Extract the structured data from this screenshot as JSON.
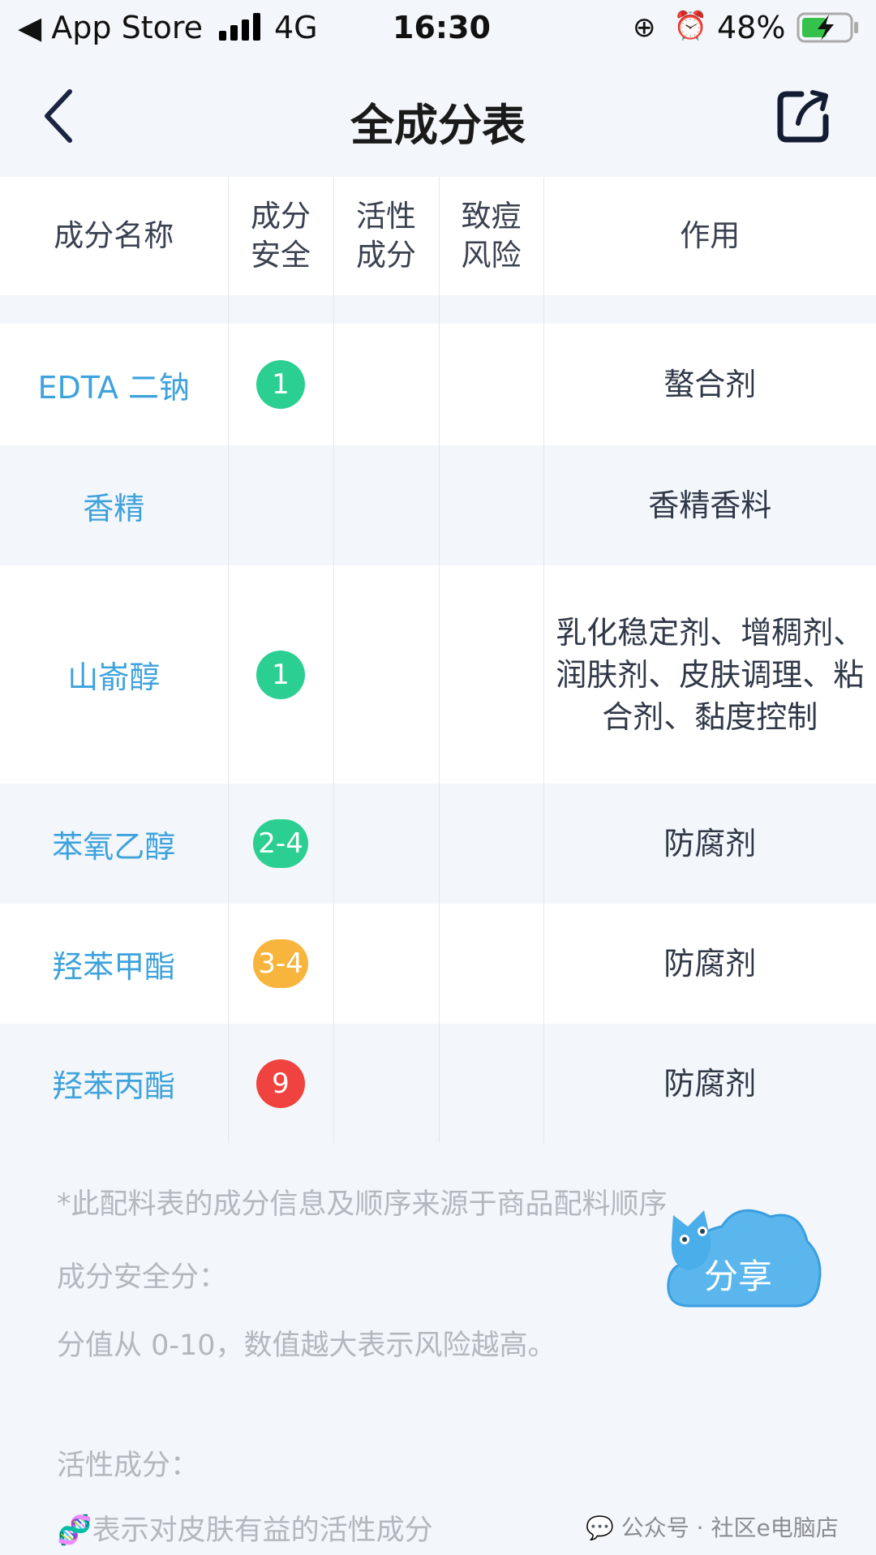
{
  "status_bar": {
    "back_app": "◀ App Store",
    "network": "4G",
    "time": "16:30",
    "battery": "48%"
  },
  "header": {
    "title": "全成分表"
  },
  "table": {
    "columns": [
      "成分名称",
      "成分\n安全",
      "活性\n成分",
      "致痘\n风险",
      "作用"
    ],
    "rows": [
      {
        "name": "EDTA 二钠",
        "safety": "1",
        "safety_color": "#2ccf92",
        "active": "",
        "acne": "",
        "function": "螯合剂"
      },
      {
        "name": "香精",
        "safety": "",
        "safety_color": "",
        "active": "",
        "acne": "",
        "function": "香精香料"
      },
      {
        "name": "山嵛醇",
        "safety": "1",
        "safety_color": "#2ccf92",
        "active": "",
        "acne": "",
        "function": "乳化稳定剂、增稠剂、润肤剂、皮肤调理、粘合剂、黏度控制"
      },
      {
        "name": "苯氧乙醇",
        "safety": "2-4",
        "safety_color": "#2ccf92",
        "active": "",
        "acne": "",
        "function": "防腐剂"
      },
      {
        "name": "羟苯甲酯",
        "safety": "3-4",
        "safety_color": "#f8b53e",
        "active": "",
        "acne": "",
        "function": "防腐剂"
      },
      {
        "name": "羟苯丙酯",
        "safety": "9",
        "safety_color": "#f0433f",
        "active": "",
        "acne": "",
        "function": "防腐剂"
      }
    ]
  },
  "footer": {
    "note": "*此配料表的成分信息及顺序来源于商品配料顺序",
    "safety_title": "成分安全分：",
    "safety_desc": "分值从 0-10，数值越大表示风险越高。",
    "active_title": "活性成分：",
    "active_desc": "表示对皮肤有益的活性成分"
  },
  "share_float": {
    "label": "分享"
  },
  "watermark": "公众号 · 社区e电脑店"
}
